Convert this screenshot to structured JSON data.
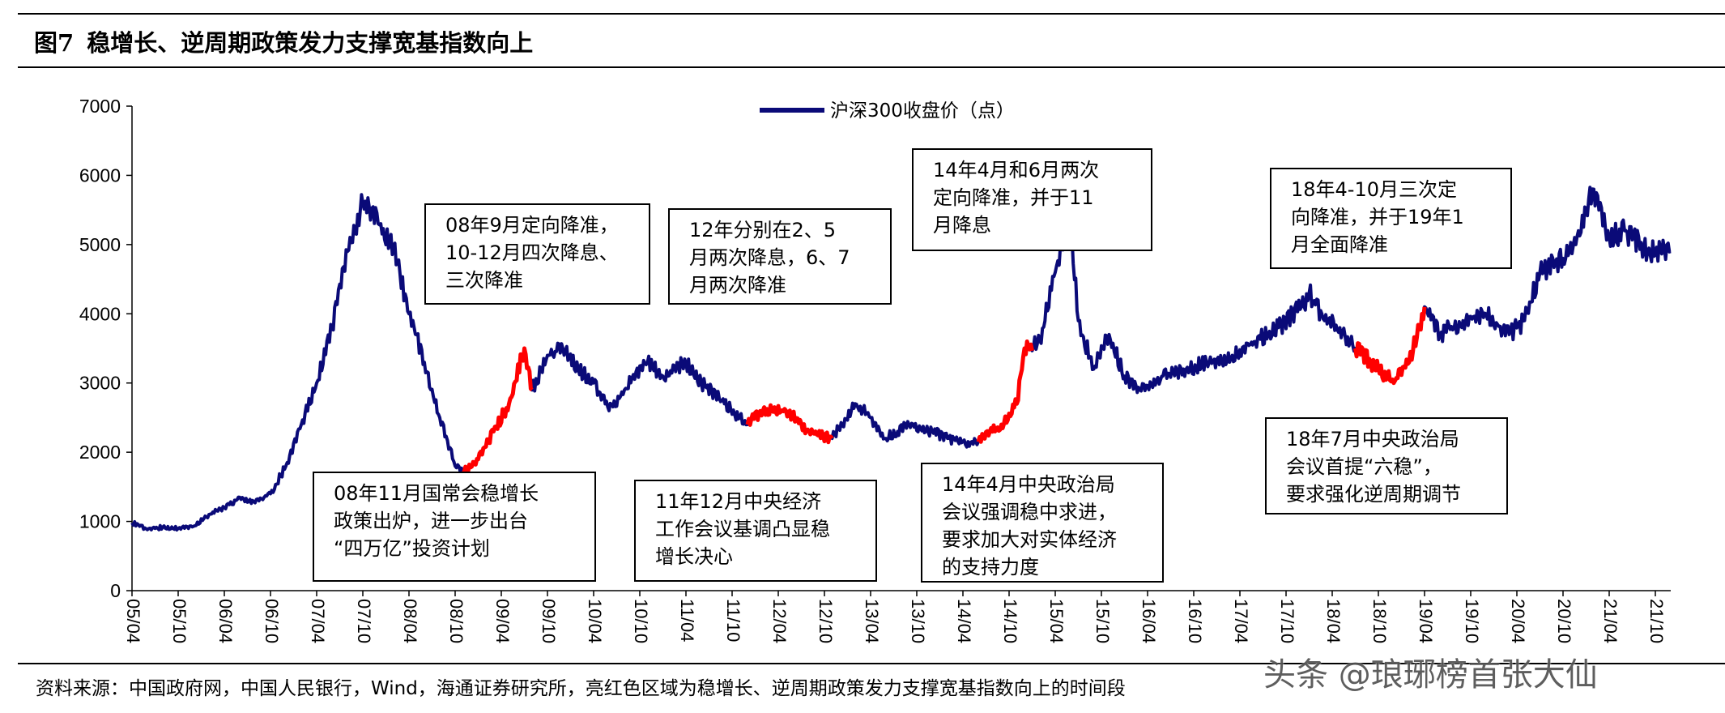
{
  "figure": {
    "number": "图7",
    "title": "稳增长、逆周期政策发力支撑宽基指数向上"
  },
  "source_note": "资料来源：中国政府网，中国人民银行，Wind，海通证券研究所，亮红色区域为稳增长、逆周期政策发力支撑宽基指数向上的时间段",
  "watermark": "头条 @琅琊榜首张大仙",
  "annotations": [
    {
      "id": "a1",
      "lines": [
        "08年9月定向降准，",
        "10-12月四次降息、",
        "三次降准"
      ]
    },
    {
      "id": "a2",
      "lines": [
        "12年分别在2、5",
        "月两次降息，6、7",
        "月两次降准"
      ]
    },
    {
      "id": "a3",
      "lines": [
        "14年4月和6月两次",
        "定向降准，并于11",
        "月降息"
      ]
    },
    {
      "id": "a4",
      "lines": [
        "18年4-10月三次定",
        "向降准，并于19年1",
        "月全面降准"
      ]
    },
    {
      "id": "a5",
      "lines": [
        "08年11月国常会稳增长",
        "政策出炉，进一步出台",
        "“四万亿”投资计划"
      ]
    },
    {
      "id": "a6",
      "lines": [
        "11年12月中央经济",
        "工作会议基调凸显稳",
        "增长决心"
      ]
    },
    {
      "id": "a7",
      "lines": [
        "14年4月中央政治局",
        "会议强调稳中求进，",
        "要求加大对实体经济",
        "的支持力度"
      ]
    },
    {
      "id": "a8",
      "lines": [
        "18年7月中央政治局",
        "会议首提“六稳”，",
        "要求强化逆周期调节"
      ]
    }
  ],
  "chart_data": {
    "type": "line",
    "title": "",
    "xlabel": "",
    "ylabel": "",
    "ylim": [
      0,
      7000
    ],
    "yticks": [
      0,
      1000,
      2000,
      3000,
      4000,
      5000,
      6000,
      7000
    ],
    "xlim": [
      "2005-04",
      "2021-12"
    ],
    "x_tick_labels": [
      "05/04",
      "05/10",
      "06/04",
      "06/10",
      "07/04",
      "07/10",
      "08/04",
      "08/10",
      "09/04",
      "09/10",
      "10/04",
      "10/10",
      "11/04",
      "11/10",
      "12/04",
      "12/10",
      "13/04",
      "13/10",
      "14/04",
      "14/10",
      "15/04",
      "15/10",
      "16/04",
      "16/10",
      "17/04",
      "17/10",
      "18/04",
      "18/10",
      "19/04",
      "19/10",
      "20/04",
      "20/10",
      "21/04",
      "21/10"
    ],
    "legend": {
      "position": "top-center"
    },
    "grid": false,
    "colors": {
      "series": "#0a0a78",
      "highlight": "#ff0000"
    },
    "series": [
      {
        "name": "沪深300收盘价（点）",
        "x": [
          "2005-04",
          "2005-06",
          "2005-08",
          "2005-10",
          "2005-12",
          "2006-02",
          "2006-04",
          "2006-06",
          "2006-08",
          "2006-10",
          "2006-12",
          "2007-02",
          "2007-04",
          "2007-06",
          "2007-08",
          "2007-10",
          "2007-12",
          "2008-02",
          "2008-04",
          "2008-06",
          "2008-08",
          "2008-10",
          "2008-11",
          "2009-01",
          "2009-03",
          "2009-05",
          "2009-07",
          "2009-08",
          "2009-10",
          "2009-12",
          "2010-02",
          "2010-04",
          "2010-06",
          "2010-08",
          "2010-11",
          "2011-01",
          "2011-04",
          "2011-06",
          "2011-09",
          "2011-12",
          "2012-02",
          "2012-05",
          "2012-08",
          "2012-11",
          "2013-02",
          "2013-04",
          "2013-06",
          "2013-09",
          "2013-12",
          "2014-02",
          "2014-04",
          "2014-06",
          "2014-09",
          "2014-11",
          "2014-12",
          "2015-02",
          "2015-04",
          "2015-06",
          "2015-07",
          "2015-09",
          "2015-11",
          "2016-01",
          "2016-03",
          "2016-06",
          "2016-09",
          "2016-12",
          "2017-03",
          "2017-06",
          "2017-09",
          "2017-12",
          "2018-01",
          "2018-03",
          "2018-05",
          "2018-07",
          "2018-09",
          "2018-10",
          "2018-12",
          "2019-02",
          "2019-04",
          "2019-06",
          "2019-09",
          "2019-12",
          "2020-03",
          "2020-05",
          "2020-07",
          "2020-10",
          "2020-12",
          "2021-02",
          "2021-04",
          "2021-06",
          "2021-09",
          "2021-12"
        ],
        "y": [
          980,
          880,
          920,
          900,
          930,
          1100,
          1200,
          1350,
          1270,
          1400,
          1800,
          2400,
          3000,
          3800,
          4900,
          5600,
          5300,
          5000,
          4000,
          3300,
          2500,
          1800,
          1700,
          1900,
          2300,
          2700,
          3500,
          2900,
          3400,
          3500,
          3200,
          3000,
          2600,
          2900,
          3300,
          3100,
          3300,
          3000,
          2700,
          2400,
          2600,
          2600,
          2300,
          2200,
          2700,
          2500,
          2200,
          2400,
          2300,
          2200,
          2150,
          2150,
          2400,
          2700,
          3500,
          3600,
          4600,
          5300,
          3900,
          3200,
          3700,
          3100,
          2900,
          3100,
          3200,
          3300,
          3400,
          3600,
          3800,
          4100,
          4300,
          3900,
          3800,
          3500,
          3300,
          3200,
          3000,
          3300,
          4100,
          3700,
          3900,
          4000,
          3700,
          3900,
          4600,
          4800,
          5200,
          5800,
          5100,
          5200,
          4900,
          4900
        ]
      }
    ],
    "highlight_periods": [
      [
        "2008-11",
        "2009-08"
      ],
      [
        "2011-12",
        "2012-11"
      ],
      [
        "2014-06",
        "2015-01"
      ],
      [
        "2018-07",
        "2019-04"
      ]
    ]
  }
}
